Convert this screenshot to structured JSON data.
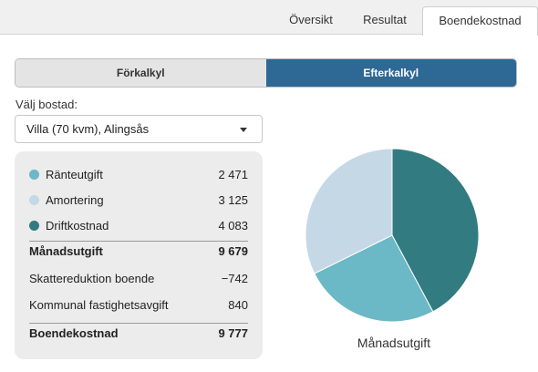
{
  "tabs": [
    {
      "label": "Översikt",
      "active": false
    },
    {
      "label": "Resultat",
      "active": false
    },
    {
      "label": "Boendekostnad",
      "active": true
    }
  ],
  "segment": {
    "left_label": "Förkalkyl",
    "right_label": "Efterkalkyl",
    "selected": "Efterkalkyl"
  },
  "housing": {
    "label": "Välj bostad:",
    "value": "Villa (70 kvm), Alingsås"
  },
  "costs": {
    "items": [
      {
        "label": "Ränteutgift",
        "value": "2 471",
        "color": "#6bb8c6"
      },
      {
        "label": "Amortering",
        "value": "3 125",
        "color": "#c5d8e6"
      },
      {
        "label": "Driftkostnad",
        "value": "4 083",
        "color": "#327b80"
      }
    ],
    "monthly": {
      "label": "Månadsutgift",
      "value": "9 679"
    },
    "tax": {
      "label": "Skattereduktion boende",
      "value": "−742"
    },
    "fee": {
      "label": "Kommunal fastighetsavgift",
      "value": "840"
    },
    "total": {
      "label": "Boendekostnad",
      "value": "9 777"
    }
  },
  "chart_data": {
    "type": "pie",
    "title": "Månadsutgift",
    "slices": [
      {
        "name": "Driftkostnad",
        "value": 4083,
        "color": "#327b80"
      },
      {
        "name": "Ränteutgift",
        "value": 2471,
        "color": "#6bb8c6"
      },
      {
        "name": "Amortering",
        "value": 3125,
        "color": "#c5d8e6"
      }
    ]
  }
}
